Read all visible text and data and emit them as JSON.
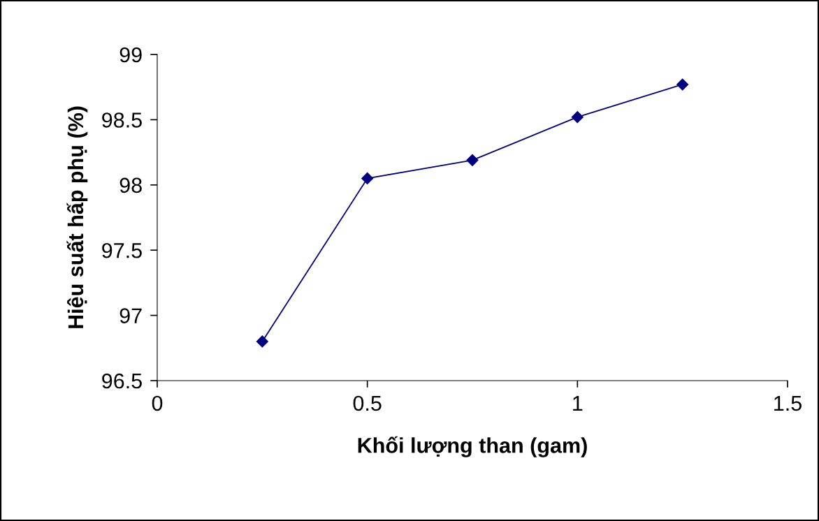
{
  "chart_data": {
    "type": "line",
    "xlabel": "Khối lượng than (gam)",
    "ylabel": "Hiệu suất hấp phụ (%)",
    "x": [
      0.25,
      0.5,
      0.75,
      1.0,
      1.25
    ],
    "series": [
      {
        "color": "#000080",
        "values": [
          96.8,
          98.05,
          98.19,
          98.52,
          98.77
        ]
      }
    ],
    "xlim": [
      0,
      1.5
    ],
    "xticks": [
      0,
      0.5,
      1,
      1.5
    ],
    "ylim": [
      96.5,
      99
    ],
    "yticks": [
      96.5,
      97,
      97.5,
      98,
      98.5,
      99
    ],
    "marker": "diamond",
    "line_style": "solid",
    "grid": false,
    "legend": false
  }
}
